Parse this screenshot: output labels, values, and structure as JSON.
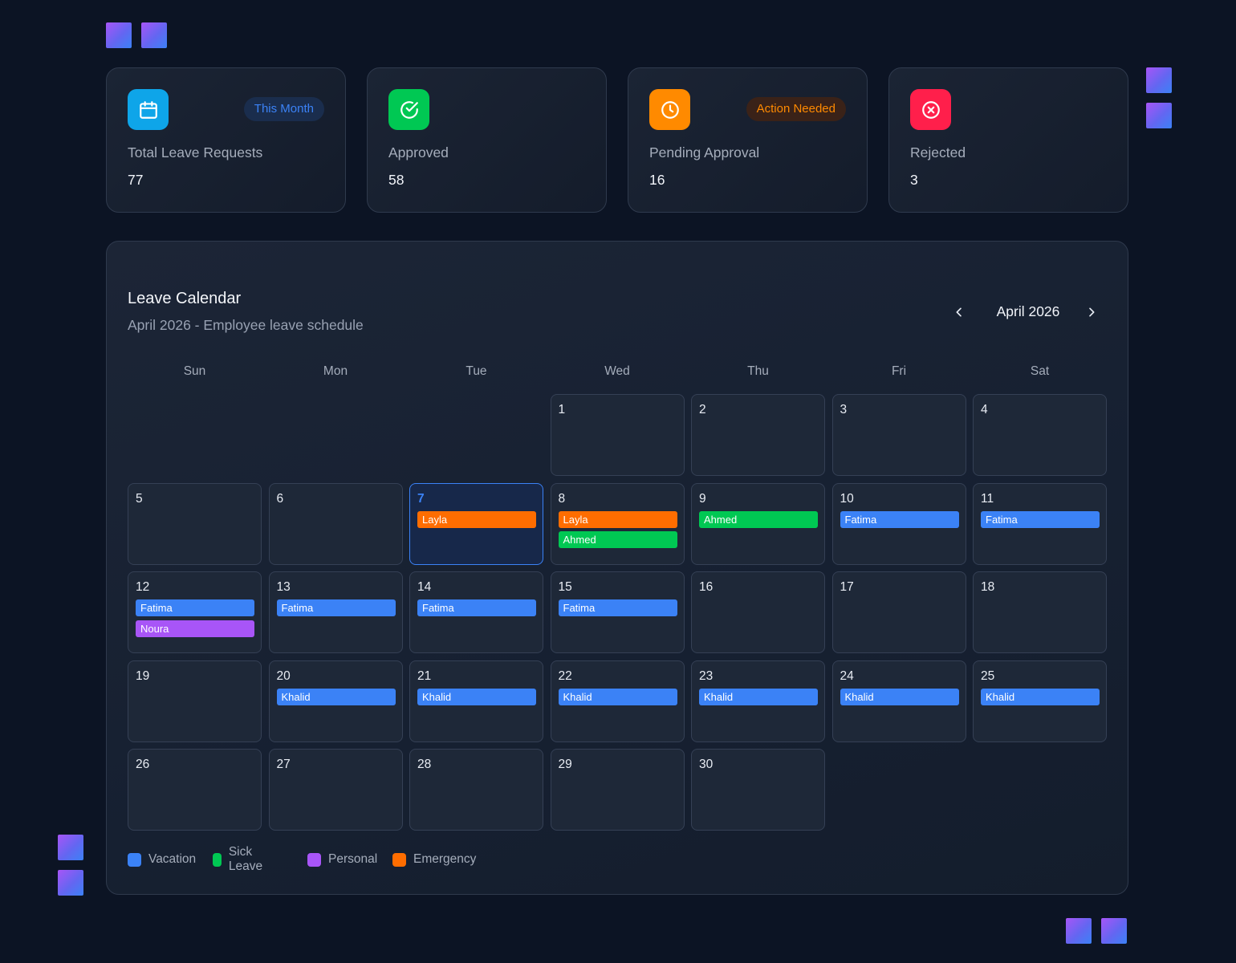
{
  "colors": {
    "vacation": "#3b82f6",
    "sick": "#00c853",
    "personal": "#a855f7",
    "emergency": "#ff6d00"
  },
  "stats": [
    {
      "id": "total",
      "icon": "calendar-icon",
      "icon_color": "#0ea5e9",
      "badge": "This Month",
      "label": "Total Leave Requests",
      "value": "77"
    },
    {
      "id": "approved",
      "icon": "check-circle-icon",
      "icon_color": "#00c853",
      "badge": "",
      "label": "Approved",
      "value": "58"
    },
    {
      "id": "pending",
      "icon": "clock-icon",
      "icon_color": "#ff8a00",
      "badge": "Action Needed",
      "label": "Pending Approval",
      "value": "16"
    },
    {
      "id": "rejected",
      "icon": "x-circle-icon",
      "icon_color": "#ff1f4b",
      "badge": "",
      "label": "Rejected",
      "value": "3"
    }
  ],
  "calendar": {
    "title": "Leave Calendar",
    "subtitle": "April 2026 - Employee leave schedule",
    "month_label": "April 2026",
    "prev_icon": "chevron-left-icon",
    "next_icon": "chevron-right-icon",
    "weekdays": [
      "Sun",
      "Mon",
      "Tue",
      "Wed",
      "Thu",
      "Fri",
      "Sat"
    ],
    "first_weekday": 3,
    "days_in_month": 30,
    "today": 7,
    "events": {
      "7": [
        {
          "name": "Layla",
          "type": "emergency"
        }
      ],
      "8": [
        {
          "name": "Layla",
          "type": "emergency"
        },
        {
          "name": "Ahmed",
          "type": "sick"
        }
      ],
      "9": [
        {
          "name": "Ahmed",
          "type": "sick"
        }
      ],
      "10": [
        {
          "name": "Fatima",
          "type": "vacation"
        }
      ],
      "11": [
        {
          "name": "Fatima",
          "type": "vacation"
        }
      ],
      "12": [
        {
          "name": "Fatima",
          "type": "vacation"
        },
        {
          "name": "Noura",
          "type": "personal"
        }
      ],
      "13": [
        {
          "name": "Fatima",
          "type": "vacation"
        }
      ],
      "14": [
        {
          "name": "Fatima",
          "type": "vacation"
        }
      ],
      "15": [
        {
          "name": "Fatima",
          "type": "vacation"
        }
      ],
      "20": [
        {
          "name": "Khalid",
          "type": "vacation"
        }
      ],
      "21": [
        {
          "name": "Khalid",
          "type": "vacation"
        }
      ],
      "22": [
        {
          "name": "Khalid",
          "type": "vacation"
        }
      ],
      "23": [
        {
          "name": "Khalid",
          "type": "vacation"
        }
      ],
      "24": [
        {
          "name": "Khalid",
          "type": "vacation"
        }
      ],
      "25": [
        {
          "name": "Khalid",
          "type": "vacation"
        }
      ]
    }
  },
  "legend": [
    {
      "label": "Vacation",
      "type": "vacation"
    },
    {
      "label": "Sick Leave",
      "type": "sick"
    },
    {
      "label": "Personal",
      "type": "personal"
    },
    {
      "label": "Emergency",
      "type": "emergency"
    }
  ]
}
